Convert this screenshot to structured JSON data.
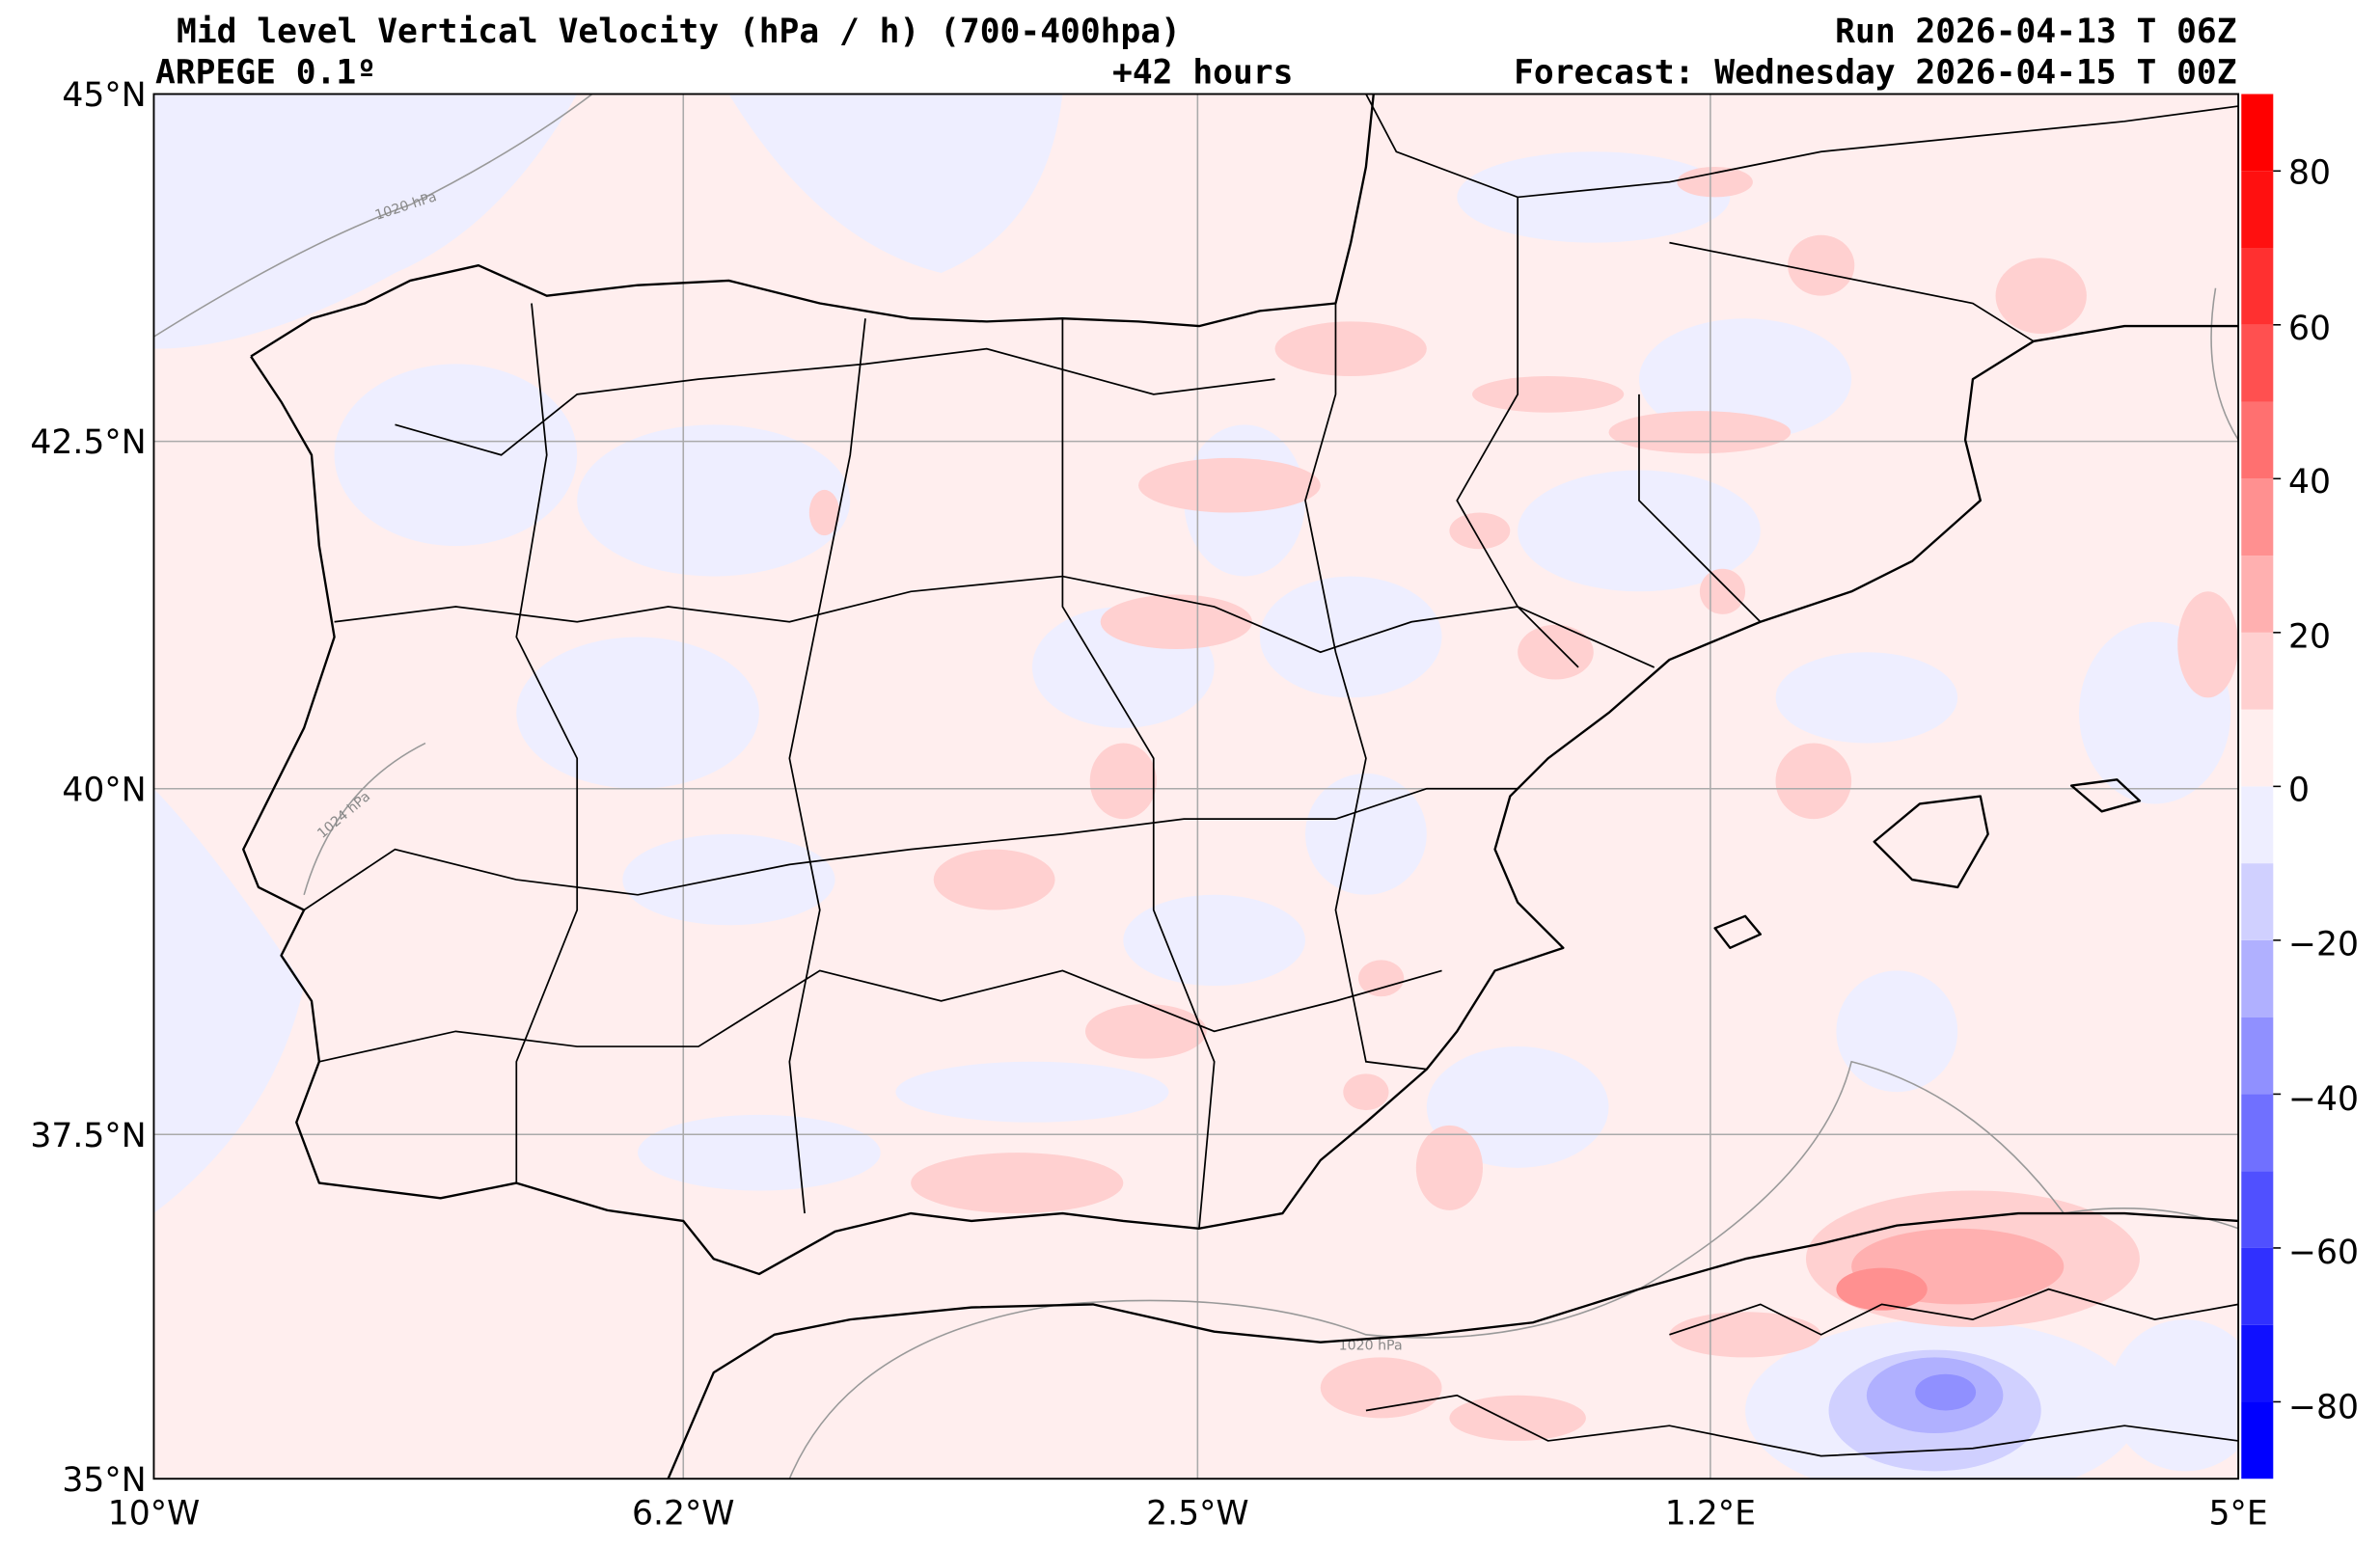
{
  "header": {
    "title": "Mid level Vertical Velocity (hPa / h)  (700-400hpa)",
    "run": "Run 2026-04-13 T 06Z",
    "model": "ARPEGE 0.1º",
    "lead": "+42 hours",
    "forecast": "Forecast: Wednesday 2026-04-15 T 00Z"
  },
  "axes": {
    "lat_labels": [
      "45°N",
      "42.5°N",
      "40°N",
      "37.5°N",
      "35°N"
    ],
    "lon_labels": [
      "10°W",
      "6.2°W",
      "2.5°W",
      "1.2°E",
      "5°E"
    ]
  },
  "colorbar": {
    "levels": [
      -90,
      -80,
      -70,
      -60,
      -50,
      -40,
      -30,
      -20,
      -10,
      0,
      10,
      20,
      30,
      40,
      50,
      60,
      70,
      80,
      90
    ],
    "colors": [
      "#0000ff",
      "#1010ff",
      "#3030ff",
      "#5050ff",
      "#7070ff",
      "#9090ff",
      "#b0b0ff",
      "#d0d0ff",
      "#eeeeff",
      "#ffeeee",
      "#ffd0d0",
      "#ffb0b0",
      "#ff9090",
      "#ff7070",
      "#ff5050",
      "#ff3030",
      "#ff1010",
      "#ff0000"
    ],
    "tick_labels": [
      "80",
      "60",
      "40",
      "20",
      "0",
      "−20",
      "−40",
      "−60",
      "−80"
    ]
  },
  "contour_labels": [
    "1020 hPa",
    "1024 hPa",
    "1020 hPa"
  ]
}
